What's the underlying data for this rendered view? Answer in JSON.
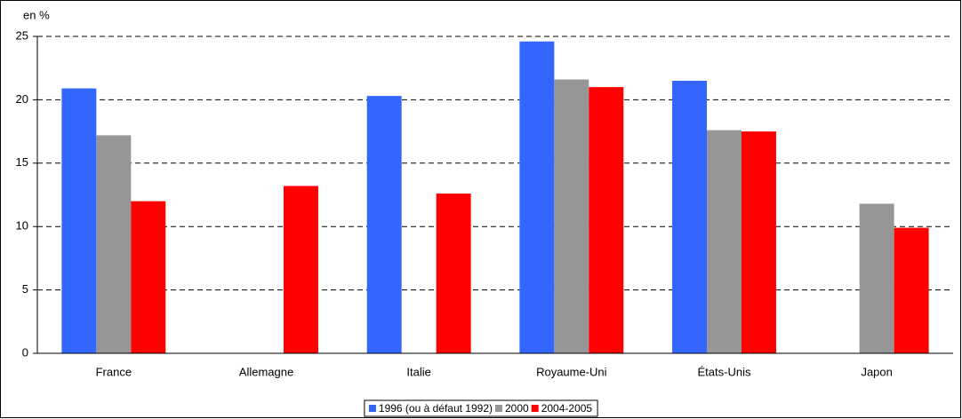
{
  "chart_data": {
    "type": "bar",
    "y_label": "en %",
    "categories": [
      "France",
      "Allemagne",
      "Italie",
      "Royaume-Uni",
      "États-Unis",
      "Japon"
    ],
    "series": [
      {
        "name": "1996 (ou à défaut 1992)",
        "color": "#3366ff",
        "values": [
          20.9,
          null,
          20.3,
          24.6,
          21.5,
          null
        ]
      },
      {
        "name": "2000",
        "color": "#969696",
        "values": [
          17.2,
          null,
          null,
          21.6,
          17.6,
          11.8
        ]
      },
      {
        "name": "2004-2005",
        "color": "#ff0000",
        "values": [
          12.0,
          13.2,
          12.6,
          21.0,
          17.5,
          9.9
        ]
      }
    ],
    "ylim": [
      0,
      25
    ],
    "yticks": [
      0,
      5,
      10,
      15,
      20,
      25
    ],
    "grid": true,
    "legend": "bottom"
  }
}
